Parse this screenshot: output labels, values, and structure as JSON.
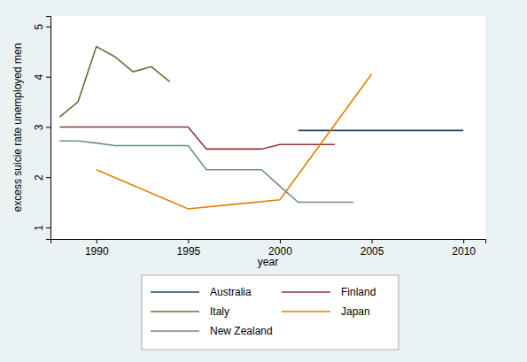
{
  "chart_data": {
    "type": "line",
    "x_label": "year",
    "y_label": "excess suicie rate unemployed men",
    "xlim": [
      1987.5,
      2011.2
    ],
    "xticks": [
      1990,
      1995,
      2000,
      2005,
      2010
    ],
    "ylim": [
      0.77,
      5.21
    ],
    "yticks": [
      1,
      2,
      3,
      4,
      5
    ],
    "grid": false,
    "legend": "bottom",
    "series": [
      {
        "name": "Australia",
        "color": "#1a476f",
        "x": [
          2001,
          2010
        ],
        "values": [
          2.93,
          2.93
        ]
      },
      {
        "name": "Finland",
        "color": "#90353b",
        "x": [
          1988,
          1989,
          1990,
          1991,
          1992,
          1993,
          1994,
          1995,
          1996,
          1997,
          1998,
          1999,
          2000,
          2001,
          2002,
          2003
        ],
        "values": [
          3.0,
          3.0,
          3.0,
          3.0,
          3.0,
          3.0,
          3.0,
          3.0,
          2.56,
          2.56,
          2.56,
          2.56,
          2.65,
          2.65,
          2.65,
          2.65
        ]
      },
      {
        "name": "Italy",
        "color": "#55752f",
        "x": [
          1988,
          1989,
          1990,
          1991,
          1992,
          1993,
          1994
        ],
        "values": [
          3.2,
          3.5,
          4.6,
          4.4,
          4.1,
          4.2,
          3.9
        ]
      },
      {
        "name": "Japan",
        "color": "#e37e00",
        "x": [
          1990,
          1995,
          2000,
          2005
        ],
        "values": [
          2.15,
          1.37,
          1.55,
          4.05
        ]
      },
      {
        "name": "New Zealand",
        "color": "#6e8e84",
        "x": [
          1988,
          1989,
          1990,
          1991,
          1992,
          1993,
          1994,
          1995,
          1996,
          1997,
          1998,
          1999,
          2000,
          2001,
          2002,
          2003,
          2004
        ],
        "values": [
          2.72,
          2.72,
          2.68,
          2.63,
          2.63,
          2.63,
          2.63,
          2.63,
          2.15,
          2.15,
          2.15,
          2.15,
          1.82,
          1.5,
          1.5,
          1.5,
          1.5
        ]
      }
    ]
  }
}
